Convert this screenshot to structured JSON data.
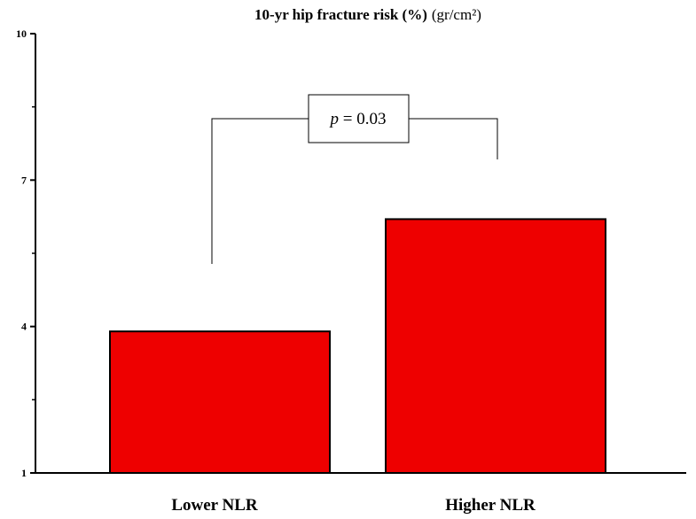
{
  "chart_data": {
    "type": "bar",
    "title": "10-yr hip fracture risk (%)",
    "title_unit": "(gr/cm²)",
    "xlabel": "",
    "ylabel": "",
    "categories": [
      "Lower NLR",
      "Higher NLR"
    ],
    "values": [
      3.9,
      6.2
    ],
    "ylim": [
      1,
      10
    ],
    "yticks": [
      1,
      4,
      7,
      10
    ],
    "bar_color": "#ee0000",
    "grid": false,
    "legend": "none",
    "annotation": {
      "p_symbol": "p",
      "p_text": " = 0.03"
    }
  }
}
